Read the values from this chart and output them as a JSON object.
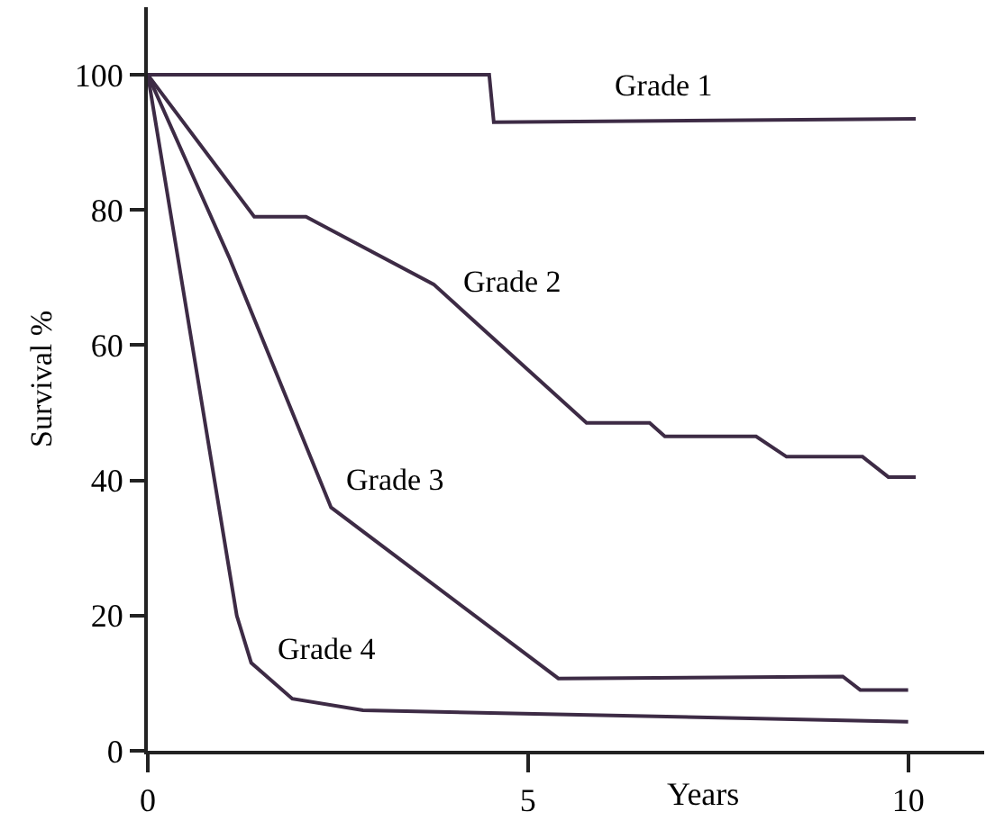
{
  "chart_data": {
    "type": "line",
    "xlabel": "Years",
    "ylabel": "Survival %",
    "series": [
      {
        "name": "Grade 1",
        "color": "#3d2b45",
        "x": [
          0,
          4.49,
          4.55,
          10.1
        ],
        "values": [
          100,
          100,
          93,
          93.5
        ]
      },
      {
        "name": "Grade 2",
        "color": "#3d2b45",
        "x": [
          0,
          1.4,
          2.08,
          3.76,
          5.77,
          6.6,
          6.8,
          8.0,
          8.4,
          9.4,
          9.74,
          10.1
        ],
        "values": [
          100,
          79,
          79,
          69,
          48.5,
          48.5,
          46.5,
          46.5,
          43.5,
          43.5,
          40.5,
          40.5
        ]
      },
      {
        "name": "Grade 3",
        "color": "#3d2b45",
        "x": [
          0,
          1.07,
          2.41,
          5.4,
          9.14,
          9.37,
          10.0
        ],
        "values": [
          100,
          73,
          36,
          10.7,
          11,
          9,
          9
        ]
      },
      {
        "name": "Grade 4",
        "color": "#3d2b45",
        "x": [
          0,
          1.17,
          1.36,
          1.9,
          2.83,
          10.0
        ],
        "values": [
          100,
          20,
          13,
          7.7,
          6,
          4.3
        ]
      }
    ],
    "xlim": [
      0,
      11
    ],
    "ylim": [
      0,
      110
    ],
    "xticks": [
      0,
      5,
      10
    ],
    "yticks": [
      0,
      20,
      40,
      60,
      80,
      100
    ],
    "legend": false,
    "marker": "none",
    "line_style": "solid"
  }
}
